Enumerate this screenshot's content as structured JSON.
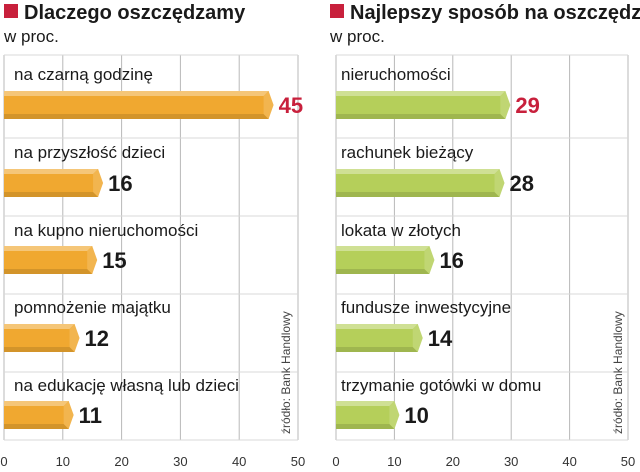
{
  "chart_data": [
    {
      "type": "bar",
      "title": "Dlaczego oszczędzamy",
      "subtitle": "w proc.",
      "categories": [
        "na czarną godzinę",
        "na przyszłość dzieci",
        "na kupno nieruchomości",
        "pomnożenie majątku",
        "na edukację własną lub dzieci"
      ],
      "values": [
        45,
        16,
        15,
        12,
        11
      ],
      "value_labels": [
        "45",
        "16",
        "15",
        "12",
        "11"
      ],
      "xlim": [
        0,
        50
      ],
      "x_ticks": [
        "0",
        "10",
        "20",
        "30",
        "40",
        "50"
      ],
      "grid": true,
      "source": "źródło: Bank Handlowy",
      "bar_color": "#f0a830",
      "title_marker_color": "#c8203c",
      "highlight_value_color": "#c8203c",
      "value_color": "#1a1a1a"
    },
    {
      "type": "bar",
      "title": "Najlepszy sposób na oszczędzanie",
      "subtitle": "w proc.",
      "categories": [
        "nieruchomości",
        "rachunek bieżący",
        "lokata w złotych",
        "fundusze inwestycyjne",
        "trzymanie gotówki w domu"
      ],
      "values": [
        29,
        28,
        16,
        14,
        10
      ],
      "value_labels": [
        "29",
        "28",
        "16",
        "14",
        "10"
      ],
      "xlim": [
        0,
        50
      ],
      "x_ticks": [
        "0",
        "10",
        "20",
        "30",
        "40",
        "50"
      ],
      "grid": true,
      "source": "źródło: Bank Handlowy",
      "bar_color": "#b5cf5a",
      "title_marker_color": "#c8203c",
      "highlight_value_color": "#c8203c",
      "value_color": "#1a1a1a"
    }
  ]
}
